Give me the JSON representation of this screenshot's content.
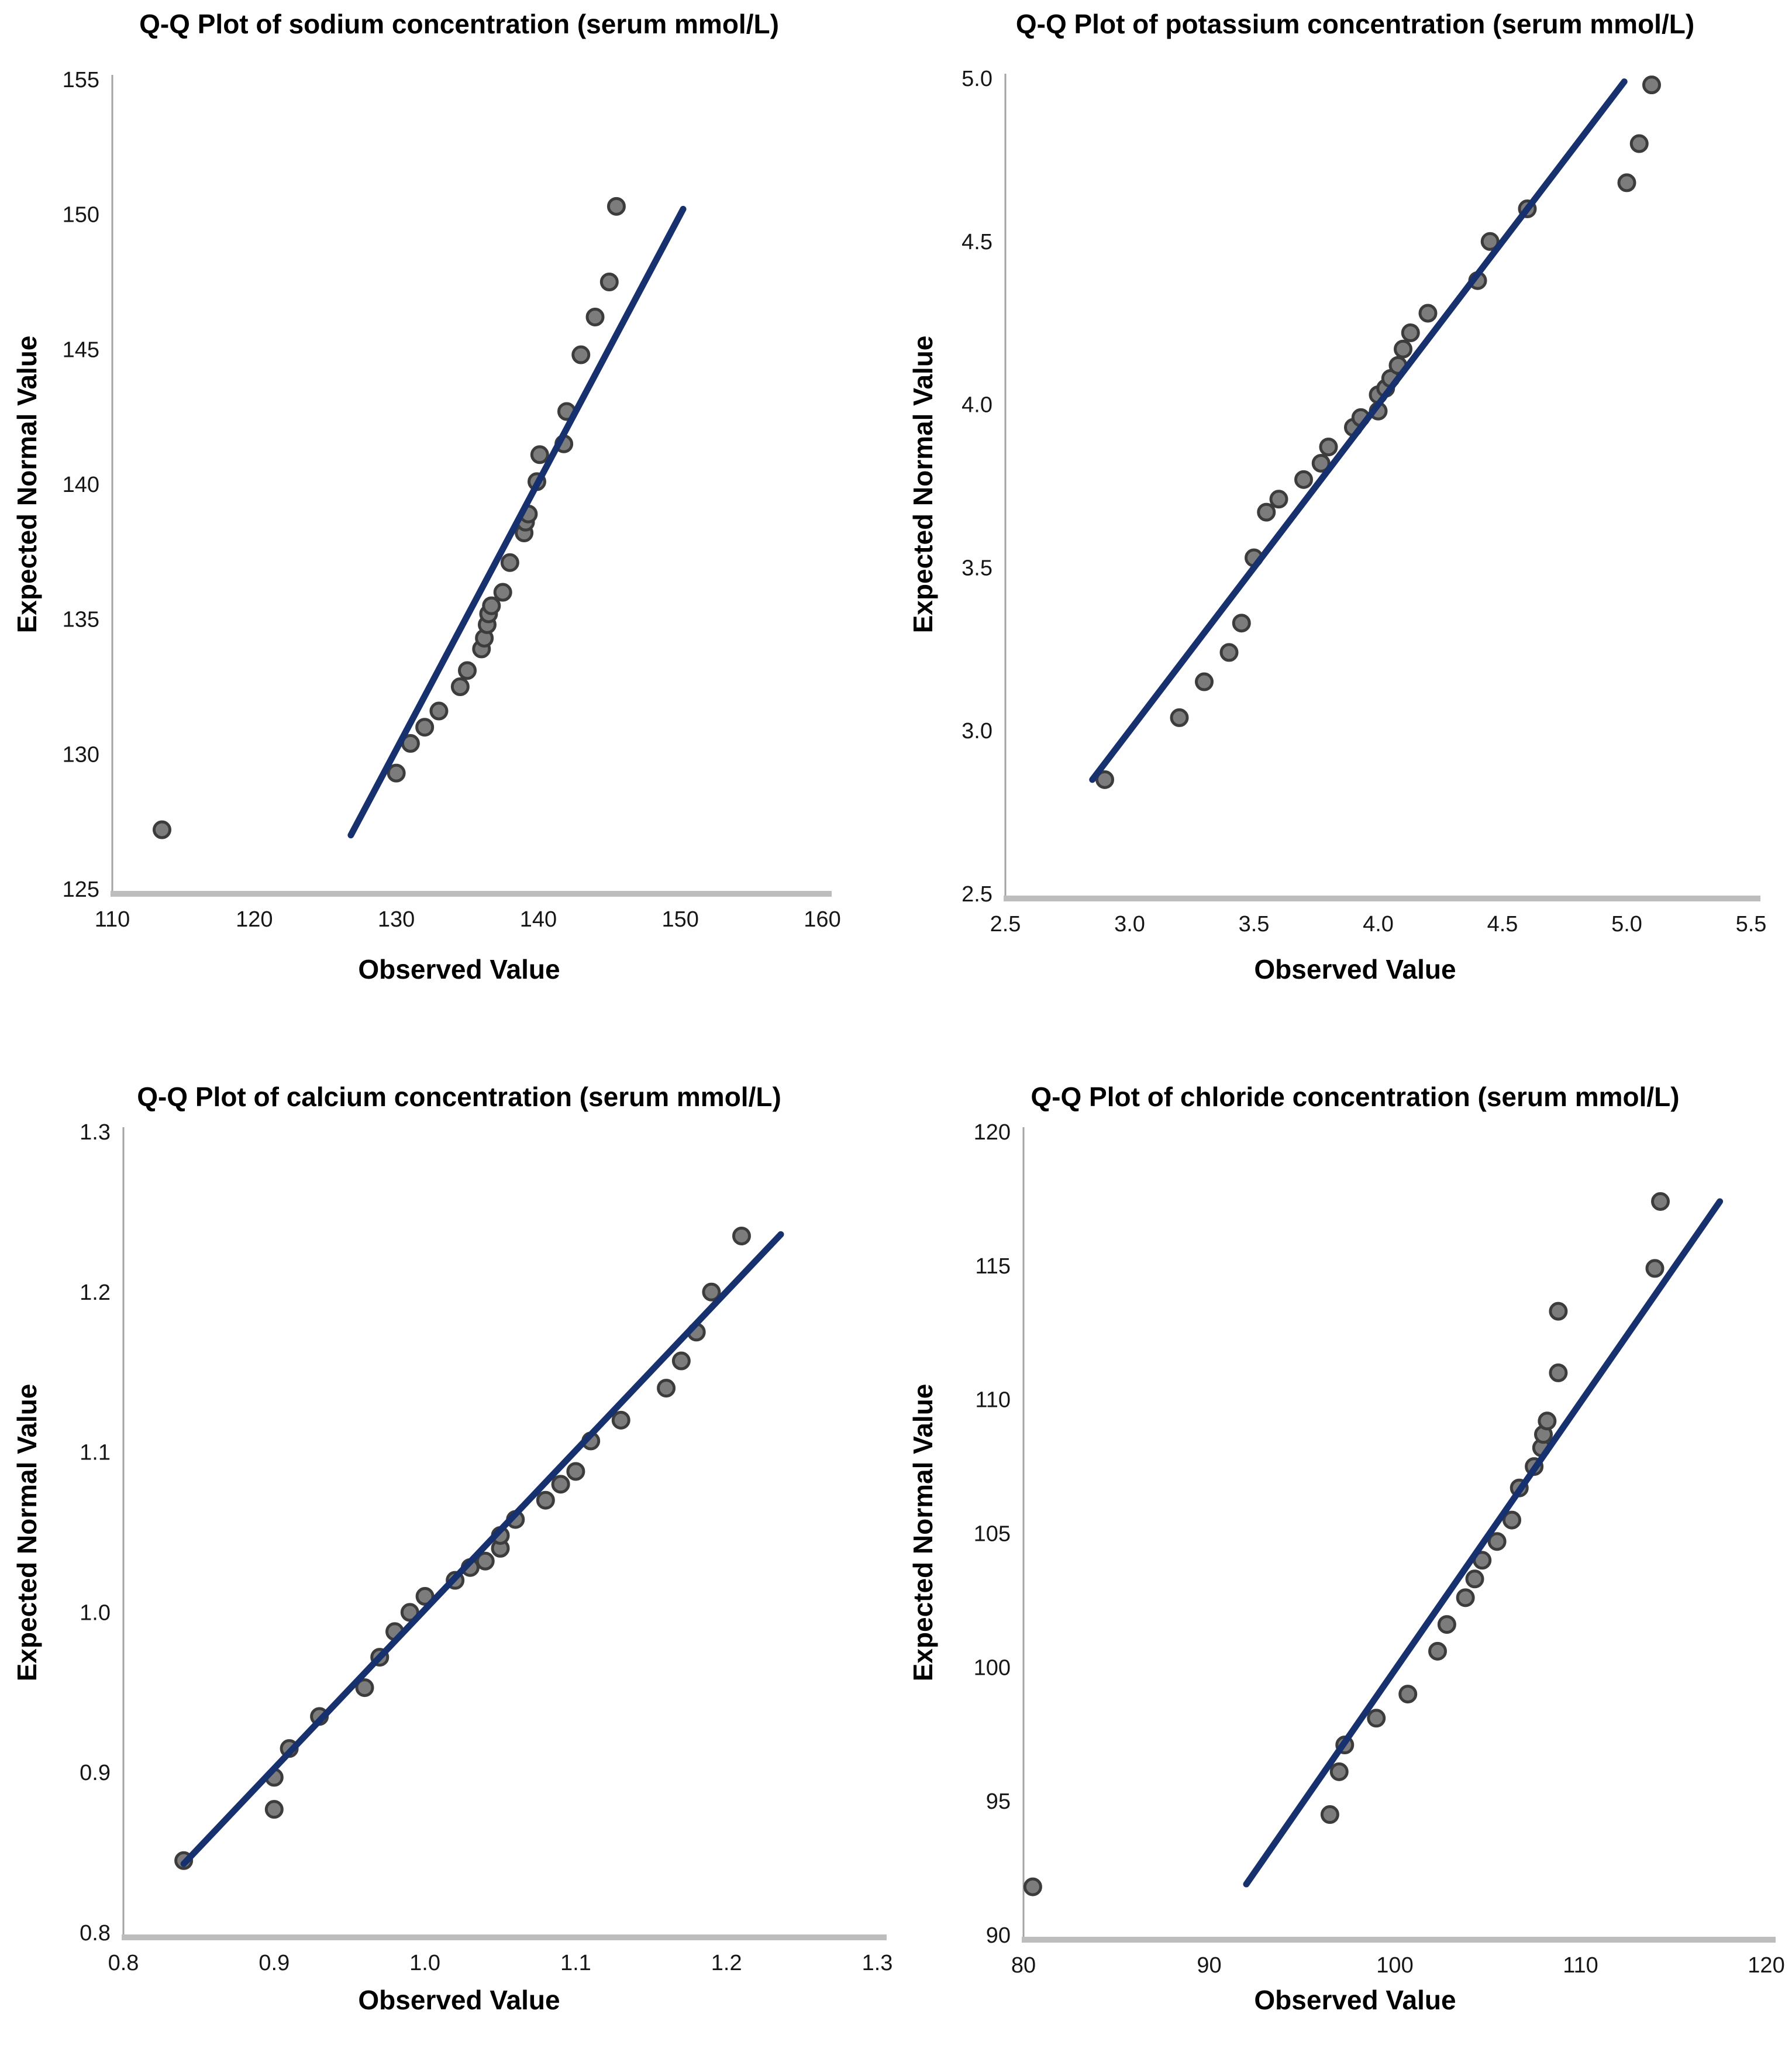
{
  "page": {
    "background": "#ffffff"
  },
  "colors": {
    "reference_line": "#16316e",
    "point_fill": "#7c7c7c",
    "point_stroke": "#3c3c3c",
    "y_axis": "#a3a3a3",
    "x_axis_baseline": "#bdbdbd",
    "tick_text": "#161616",
    "title_text": "#000000"
  },
  "chart_data": [
    {
      "type": "scatter",
      "title": "Q-Q Plot of sodium concentration (serum mmol/L)",
      "xlabel": "Observed Value",
      "ylabel": "Expected Normal Value",
      "xlim": [
        110,
        160
      ],
      "ylim": [
        125,
        155
      ],
      "xticks": [
        110,
        120,
        130,
        140,
        150,
        160
      ],
      "xtick_labels": [
        "110",
        "120",
        "130",
        "140",
        "150",
        "160"
      ],
      "yticks": [
        125,
        130,
        135,
        140,
        145,
        150,
        155
      ],
      "ytick_labels": [
        "125",
        "130",
        "135",
        "140",
        "145",
        "150",
        "155"
      ],
      "grid": false,
      "legend": "none",
      "ref_line": {
        "x1": 126.8,
        "y1": 127.0,
        "x2": 150.2,
        "y2": 150.2
      },
      "points": [
        [
          113.5,
          127.2
        ],
        [
          130,
          129.3
        ],
        [
          131,
          130.4
        ],
        [
          132,
          131.0
        ],
        [
          133,
          131.6
        ],
        [
          134.5,
          132.5
        ],
        [
          135,
          133.1
        ],
        [
          136,
          133.9
        ],
        [
          136.2,
          134.3
        ],
        [
          136.4,
          134.8
        ],
        [
          136.5,
          135.2
        ],
        [
          136.7,
          135.5
        ],
        [
          137.5,
          136.0
        ],
        [
          138,
          137.1
        ],
        [
          139,
          138.2
        ],
        [
          139.1,
          138.6
        ],
        [
          139.3,
          138.9
        ],
        [
          139.9,
          140.1
        ],
        [
          140.1,
          141.1
        ],
        [
          141.8,
          141.5
        ],
        [
          142,
          142.7
        ],
        [
          143,
          144.8
        ],
        [
          144,
          146.2
        ],
        [
          145,
          147.5
        ],
        [
          145.5,
          150.3
        ]
      ]
    },
    {
      "type": "scatter",
      "title": "Q-Q Plot of potassium concentration (serum mmol/L)",
      "xlabel": "Observed Value",
      "ylabel": "Expected Normal Value",
      "xlim": [
        2.5,
        5.5
      ],
      "ylim": [
        2.5,
        5.0
      ],
      "xticks": [
        2.5,
        3.0,
        3.5,
        4.0,
        4.5,
        5.0,
        5.5
      ],
      "xtick_labels": [
        "2.5",
        "3.0",
        "3.5",
        "4.0",
        "4.5",
        "5.0",
        "5.5"
      ],
      "yticks": [
        2.5,
        3.0,
        3.5,
        4.0,
        4.5,
        5.0
      ],
      "ytick_labels": [
        "2.5",
        "3.0",
        "3.5",
        "4.0",
        "4.5",
        "5.0"
      ],
      "grid": false,
      "legend": "none",
      "ref_line": {
        "x1": 2.85,
        "y1": 2.85,
        "x2": 4.99,
        "y2": 4.99
      },
      "points": [
        [
          2.9,
          2.85
        ],
        [
          3.2,
          3.04
        ],
        [
          3.3,
          3.15
        ],
        [
          3.4,
          3.24
        ],
        [
          3.45,
          3.33
        ],
        [
          3.5,
          3.53
        ],
        [
          3.55,
          3.67
        ],
        [
          3.6,
          3.71
        ],
        [
          3.7,
          3.77
        ],
        [
          3.77,
          3.82
        ],
        [
          3.8,
          3.87
        ],
        [
          3.9,
          3.93
        ],
        [
          3.93,
          3.96
        ],
        [
          4.0,
          3.98
        ],
        [
          4.0,
          4.03
        ],
        [
          4.03,
          4.05
        ],
        [
          4.05,
          4.08
        ],
        [
          4.08,
          4.12
        ],
        [
          4.1,
          4.17
        ],
        [
          4.13,
          4.22
        ],
        [
          4.2,
          4.28
        ],
        [
          4.4,
          4.38
        ],
        [
          4.45,
          4.5
        ],
        [
          4.6,
          4.6
        ],
        [
          5.0,
          4.68
        ],
        [
          5.05,
          4.8
        ],
        [
          5.1,
          4.98
        ]
      ]
    },
    {
      "type": "scatter",
      "title": "Q-Q Plot of calcium concentration (serum mmol/L)",
      "xlabel": "Observed Value",
      "ylabel": "Expected Normal Value",
      "xlim": [
        0.8,
        1.3
      ],
      "ylim": [
        0.8,
        1.3
      ],
      "xticks": [
        0.8,
        0.9,
        1.0,
        1.1,
        1.2,
        1.3
      ],
      "xtick_labels": [
        "0.8",
        "0.9",
        "1.0",
        "1.1",
        "1.2",
        "1.3"
      ],
      "yticks": [
        0.8,
        0.9,
        1.0,
        1.1,
        1.2,
        1.3
      ],
      "ytick_labels": [
        "0.8",
        "0.9",
        "1.0",
        "1.1",
        "1.2",
        "1.3"
      ],
      "grid": false,
      "legend": "none",
      "ref_line": {
        "x1": 0.84,
        "y1": 0.843,
        "x2": 1.236,
        "y2": 1.236
      },
      "points": [
        [
          0.84,
          0.845
        ],
        [
          0.9,
          0.877
        ],
        [
          0.9,
          0.897
        ],
        [
          0.91,
          0.915
        ],
        [
          0.93,
          0.935
        ],
        [
          0.96,
          0.953
        ],
        [
          0.97,
          0.972
        ],
        [
          0.98,
          0.988
        ],
        [
          0.99,
          1.0
        ],
        [
          1.0,
          1.01
        ],
        [
          1.02,
          1.02
        ],
        [
          1.03,
          1.028
        ],
        [
          1.04,
          1.032
        ],
        [
          1.05,
          1.04
        ],
        [
          1.05,
          1.048
        ],
        [
          1.06,
          1.058
        ],
        [
          1.08,
          1.07
        ],
        [
          1.09,
          1.08
        ],
        [
          1.1,
          1.088
        ],
        [
          1.11,
          1.107
        ],
        [
          1.13,
          1.12
        ],
        [
          1.16,
          1.14
        ],
        [
          1.17,
          1.157
        ],
        [
          1.18,
          1.175
        ],
        [
          1.19,
          1.2
        ],
        [
          1.21,
          1.235
        ]
      ]
    },
    {
      "type": "scatter",
      "title": "Q-Q Plot of chloride concentration (serum mmol/L)",
      "xlabel": "Observed Value",
      "ylabel": "Expected Normal Value",
      "xlim": [
        80,
        120
      ],
      "ylim": [
        90,
        120
      ],
      "xticks": [
        80,
        90,
        100,
        110,
        120
      ],
      "xtick_labels": [
        "80",
        "90",
        "100",
        "110",
        "120"
      ],
      "yticks": [
        90,
        95,
        100,
        105,
        110,
        115,
        120
      ],
      "ytick_labels": [
        "90",
        "95",
        "100",
        "105",
        "110",
        "115",
        "120"
      ],
      "grid": false,
      "legend": "none",
      "ref_line": {
        "x1": 92.0,
        "y1": 91.9,
        "x2": 117.5,
        "y2": 117.4
      },
      "points": [
        [
          80.5,
          91.8
        ],
        [
          96.5,
          94.5
        ],
        [
          97,
          96.1
        ],
        [
          97.3,
          97.1
        ],
        [
          99,
          98.1
        ],
        [
          100.7,
          99.0
        ],
        [
          102.3,
          100.6
        ],
        [
          102.8,
          101.6
        ],
        [
          103.8,
          102.6
        ],
        [
          104.3,
          103.3
        ],
        [
          104.7,
          104.0
        ],
        [
          105.5,
          104.7
        ],
        [
          106.3,
          105.5
        ],
        [
          106.7,
          106.7
        ],
        [
          107.5,
          107.5
        ],
        [
          107.9,
          108.2
        ],
        [
          108,
          108.7
        ],
        [
          108.2,
          109.2
        ],
        [
          108.8,
          111.0
        ],
        [
          108.8,
          113.3
        ],
        [
          114,
          114.9
        ],
        [
          114.3,
          117.4
        ]
      ]
    }
  ]
}
